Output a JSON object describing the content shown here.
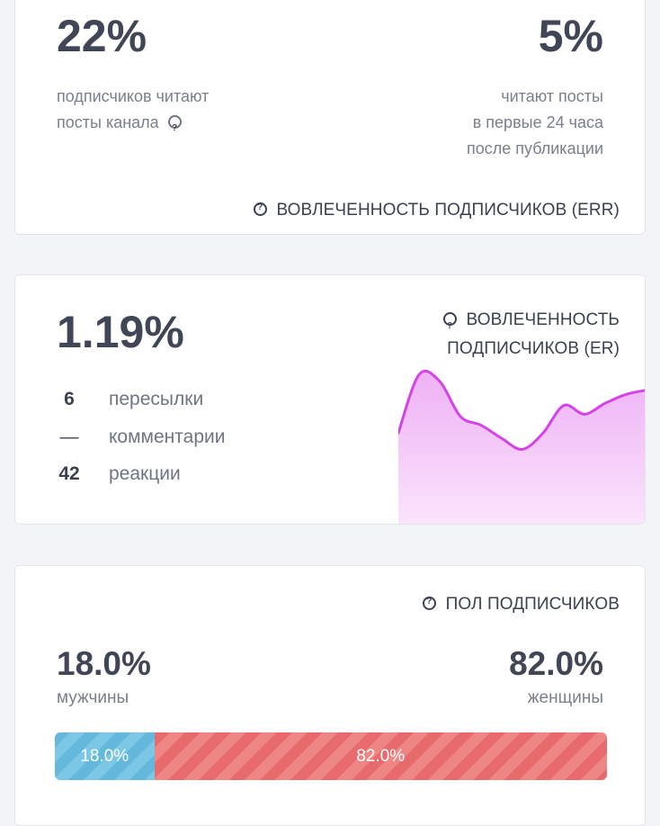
{
  "reach": {
    "left_value": "22%",
    "left_desc_line1": "подписчиков читают",
    "left_desc_line2": "посты канала",
    "right_value": "5%",
    "right_desc_line1": "читают посты",
    "right_desc_line2": "в первые 24 часа",
    "right_desc_line3": "после публикации",
    "footer_label": "ВОВЛЕЧЕННОСТЬ ПОДПИСЧИКОВ (ERR)"
  },
  "engagement": {
    "value": "1.19%",
    "title_line1": "ВОВЛЕЧЕННОСТЬ",
    "title_line2": "ПОДПИСЧИКОВ (ER)",
    "stats": [
      {
        "num": "6",
        "label": "пересылки"
      },
      {
        "num": "—",
        "label": "комментарии"
      },
      {
        "num": "42",
        "label": "реакции"
      }
    ]
  },
  "gender": {
    "title": "ПОЛ ПОДПИСЧИКОВ",
    "male_value": "18.0%",
    "male_label": "мужчины",
    "female_value": "82.0%",
    "female_label": "женщины",
    "male_bar_label": "18.0%",
    "female_bar_label": "82.0%",
    "male_fraction": 0.18,
    "female_fraction": 0.82
  },
  "colors": {
    "sparkline_line": "#d443e8",
    "sparkline_fill_top": "#eeb1f5",
    "sparkline_fill_bottom": "#fbe4fd",
    "male_bar": "#63b8dc",
    "female_bar": "#e76a6c"
  },
  "chart_data": {
    "type": "area",
    "values": [
      0.45,
      0.98,
      0.92,
      0.6,
      0.52,
      0.4,
      0.3,
      0.45,
      0.7,
      0.62,
      0.72,
      0.8,
      0.84
    ],
    "title": "",
    "xlabel": "",
    "ylabel": ""
  },
  "icons": [
    "question-circle-icon"
  ]
}
